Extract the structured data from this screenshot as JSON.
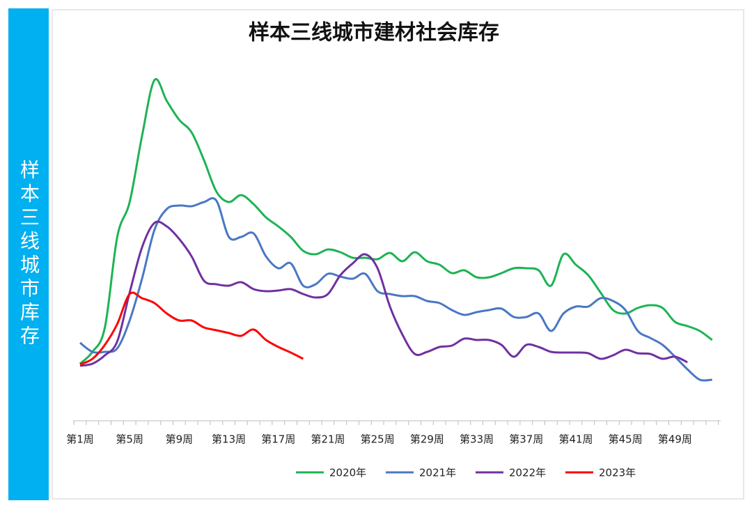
{
  "sidebar_label": "样本三线城市库存",
  "chart_data": {
    "type": "line",
    "title": "样本三线城市建材社会库存",
    "categories": [
      "第1周",
      null,
      null,
      null,
      "第5周",
      null,
      null,
      null,
      "第9周",
      null,
      null,
      null,
      "第13周",
      null,
      null,
      null,
      "第17周",
      null,
      null,
      null,
      "第21周",
      null,
      null,
      null,
      "第25周",
      null,
      null,
      null,
      "第29周",
      null,
      null,
      null,
      "第33周",
      null,
      null,
      null,
      "第37周",
      null,
      null,
      null,
      "第41周",
      null,
      null,
      null,
      "第45周",
      null,
      null,
      null,
      "第49周",
      null,
      null,
      null
    ],
    "ylim": [
      0,
      100
    ],
    "legend": "bottom",
    "series": [
      {
        "name": "2020年",
        "color": "#1db354",
        "values": [
          16.4,
          19.8,
          26.8,
          52.8,
          62.8,
          81.8,
          97.8,
          91.8,
          86.4,
          82.8,
          74.8,
          65.8,
          62.8,
          64.8,
          62.2,
          58.4,
          55.8,
          52.8,
          48.8,
          47.8,
          49.2,
          48.4,
          46.8,
          46.8,
          46.4,
          48.2,
          45.8,
          48.4,
          45.8,
          44.8,
          42.4,
          43.2,
          41.2,
          41.2,
          42.4,
          43.8,
          43.8,
          43.2,
          38.8,
          47.8,
          44.8,
          41.8,
          36.8,
          31.8,
          30.8,
          32.4,
          33.2,
          32.4,
          28.4,
          27.2,
          25.8,
          23.2
        ]
      },
      {
        "name": "2021年",
        "color": "#4a77c4",
        "values": [
          22.4,
          19.8,
          19.8,
          20.8,
          28.8,
          40.8,
          54.8,
          60.8,
          61.8,
          61.6,
          62.8,
          63.2,
          52.8,
          52.8,
          53.8,
          47.2,
          43.8,
          45.2,
          38.8,
          39.2,
          42.2,
          41.4,
          40.8,
          42.2,
          37.2,
          36.4,
          35.8,
          35.8,
          34.4,
          33.8,
          31.8,
          30.4,
          31.2,
          31.8,
          32.2,
          29.8,
          29.8,
          30.8,
          25.8,
          30.8,
          32.8,
          32.8,
          35.2,
          34.4,
          31.8,
          25.8,
          23.8,
          21.8,
          18.4,
          14.8,
          11.8,
          11.8
        ]
      },
      {
        "name": "2022年",
        "color": "#7030a0",
        "values": [
          15.8,
          16.4,
          18.8,
          22.8,
          36.8,
          49.8,
          56.8,
          55.8,
          52.2,
          47.2,
          40.2,
          39.2,
          38.8,
          39.8,
          37.8,
          37.2,
          37.4,
          37.8,
          36.4,
          35.4,
          36.4,
          41.8,
          45.2,
          47.8,
          43.8,
          32.8,
          24.8,
          19.2,
          19.8,
          21.2,
          21.6,
          23.6,
          23.2,
          23.2,
          21.8,
          18.4,
          21.8,
          21.2,
          19.8,
          19.6,
          19.6,
          19.4,
          17.8,
          18.8,
          20.4,
          19.4,
          19.2,
          17.8,
          18.4,
          16.8,
          null,
          null
        ]
      },
      {
        "name": "2023年",
        "color": "#ff0000",
        "values": [
          16.2,
          17.8,
          21.8,
          27.8,
          36.4,
          35.2,
          33.8,
          30.8,
          28.8,
          28.8,
          26.8,
          26,
          25.2,
          24.4,
          26.2,
          23.2,
          21.2,
          19.6,
          17.8,
          null,
          null,
          null,
          null,
          null,
          null,
          null,
          null,
          null,
          null,
          null,
          null,
          null,
          null,
          null,
          null,
          null,
          null,
          null,
          null,
          null,
          null,
          null,
          null,
          null,
          null,
          null,
          null,
          null,
          null,
          null,
          null,
          null
        ]
      }
    ]
  }
}
